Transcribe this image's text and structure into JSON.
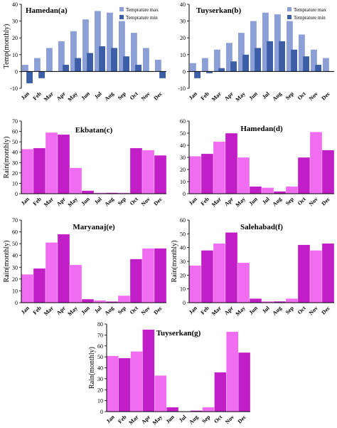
{
  "colors": {
    "temp_max": "#8c9fd6",
    "temp_min": "#3c5ea6",
    "rain_light": "#f06cf0",
    "rain_dark": "#c21ec7"
  },
  "months": [
    "Jan",
    "Feb",
    "Mar",
    "Apr",
    "May",
    "Jun",
    "Jul",
    "Aug",
    "Sep",
    "Oct",
    "Nov",
    "Dec"
  ],
  "chart_data": [
    {
      "type": "bar",
      "title": "Hamedan(a)",
      "ylabel": "Temp(monthly)",
      "ylim": [
        -10,
        40
      ],
      "yticks": [
        -10,
        0,
        10,
        20,
        30,
        40
      ],
      "categories": [
        "Jan",
        "Feb",
        "Mar",
        "Apr",
        "May",
        "Jun",
        "Jul",
        "Aug",
        "Sep",
        "Oct",
        "Nov",
        "Dec"
      ],
      "series": [
        {
          "name": "Temprature max",
          "values": [
            4,
            8,
            14,
            18,
            24,
            31,
            36,
            35,
            30,
            23,
            14,
            7
          ]
        },
        {
          "name": "Temprature min",
          "values": [
            -7,
            -4,
            0,
            4,
            8,
            11,
            15,
            14,
            9,
            4,
            0,
            -4
          ]
        }
      ]
    },
    {
      "type": "bar",
      "title": "Tuyserkan(b)",
      "ylabel": "",
      "ylim": [
        -10,
        40
      ],
      "yticks": [
        -10,
        0,
        10,
        20,
        30,
        40
      ],
      "categories": [
        "Jan",
        "Feb",
        "Mar",
        "Apr",
        "May",
        "Jun",
        "Jul",
        "Aug",
        "Sep",
        "Oct",
        "Nov",
        "Dec"
      ],
      "series": [
        {
          "name": "Temprature max",
          "values": [
            5,
            8,
            13,
            17,
            23,
            30,
            35,
            34,
            30,
            22,
            13,
            8
          ]
        },
        {
          "name": "Temprature min",
          "values": [
            -4,
            -1,
            2,
            6,
            10,
            14,
            18,
            18,
            13,
            9,
            4,
            0
          ]
        }
      ]
    },
    {
      "type": "bar",
      "title": "Ekbatan(c)",
      "ylabel": "Rain(monthly)",
      "ylim": [
        0,
        70
      ],
      "yticks": [
        0,
        10,
        20,
        30,
        40,
        50,
        60,
        70
      ],
      "categories": [
        "Jan",
        "Feb",
        "Mar",
        "Apr",
        "May",
        "Jun",
        "Jul",
        "Aug",
        "Sep",
        "Oct",
        "Nov",
        "Dec"
      ],
      "values": [
        43,
        44,
        59,
        57,
        25,
        3,
        1,
        1,
        1,
        44,
        42,
        37
      ]
    },
    {
      "type": "bar",
      "title": "Hamedan(d)",
      "ylabel": "",
      "ylim": [
        0,
        60
      ],
      "yticks": [
        0,
        10,
        20,
        30,
        40,
        50,
        60
      ],
      "categories": [
        "Jan",
        "Feb",
        "Mar",
        "Apr",
        "May",
        "Jun",
        "Jul",
        "Aug",
        "Sep",
        "Oct",
        "Nov",
        "Dec"
      ],
      "values": [
        31,
        33,
        43,
        50,
        30,
        6,
        5,
        2,
        6,
        30,
        51,
        36
      ]
    },
    {
      "type": "bar",
      "title": "Maryanaj(e)",
      "ylabel": "Rain(monthly)",
      "ylim": [
        0,
        70
      ],
      "yticks": [
        0,
        10,
        20,
        30,
        40,
        50,
        60,
        70
      ],
      "categories": [
        "Jan",
        "Feb",
        "Mar",
        "Apr",
        "May",
        "Jun",
        "Jul",
        "Aug",
        "Sep",
        "Oct",
        "Nov",
        "Dec"
      ],
      "values": [
        24,
        29,
        51,
        58,
        32,
        3,
        2,
        1,
        6,
        37,
        46,
        46
      ]
    },
    {
      "type": "bar",
      "title": "Salehabad(f)",
      "ylabel": "Rain(monthly)",
      "ylim": [
        0,
        60
      ],
      "yticks": [
        0,
        10,
        20,
        30,
        40,
        50,
        60
      ],
      "categories": [
        "Jan",
        "Feb",
        "Mar",
        "Apr",
        "May",
        "Jun",
        "Jul",
        "Aug",
        "Sep",
        "Oct",
        "Nov",
        "Dec"
      ],
      "values": [
        27,
        38,
        43,
        51,
        29,
        3,
        1,
        1,
        3,
        42,
        38,
        43
      ]
    },
    {
      "type": "bar",
      "title": "Tuyserkan(g)",
      "ylabel": "Rain(monthly)",
      "ylim": [
        0,
        80
      ],
      "yticks": [
        0,
        10,
        20,
        30,
        40,
        50,
        60,
        70,
        80
      ],
      "categories": [
        "Jan",
        "Feb",
        "Mar",
        "Apr",
        "May",
        "Jun",
        "Jul",
        "Aug",
        "Sep",
        "Oct",
        "Nov",
        "Dec"
      ],
      "values": [
        51,
        49,
        55,
        75,
        33,
        4,
        0,
        1,
        4,
        36,
        73,
        54
      ]
    }
  ]
}
